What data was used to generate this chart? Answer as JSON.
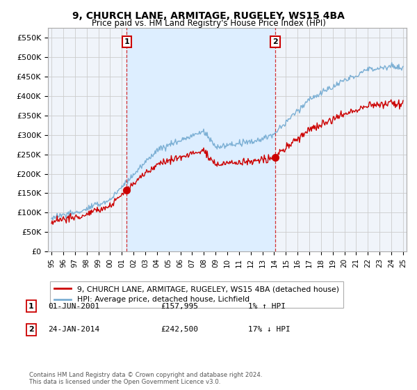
{
  "title": "9, CHURCH LANE, ARMITAGE, RUGELEY, WS15 4BA",
  "subtitle": "Price paid vs. HM Land Registry's House Price Index (HPI)",
  "ylabel_ticks": [
    "£0",
    "£50K",
    "£100K",
    "£150K",
    "£200K",
    "£250K",
    "£300K",
    "£350K",
    "£400K",
    "£450K",
    "£500K",
    "£550K"
  ],
  "ytick_values": [
    0,
    50000,
    100000,
    150000,
    200000,
    250000,
    300000,
    350000,
    400000,
    450000,
    500000,
    550000
  ],
  "ylim": [
    0,
    575000
  ],
  "xlim_start": 1994.7,
  "xlim_end": 2025.3,
  "legend_entry1": "9, CHURCH LANE, ARMITAGE, RUGELEY, WS15 4BA (detached house)",
  "legend_entry2": "HPI: Average price, detached house, Lichfield",
  "sale1_date": "01-JUN-2001",
  "sale1_price": "£157,995",
  "sale1_hpi": "1% ↑ HPI",
  "sale2_date": "24-JAN-2014",
  "sale2_price": "£242,500",
  "sale2_hpi": "17% ↓ HPI",
  "footnote1": "Contains HM Land Registry data © Crown copyright and database right 2024.",
  "footnote2": "This data is licensed under the Open Government Licence v3.0.",
  "red_color": "#cc0000",
  "blue_color": "#7bafd4",
  "fill_color": "#ddeeff",
  "background_color": "#ffffff",
  "plot_bg_color": "#f0f4fa",
  "grid_color": "#cccccc"
}
